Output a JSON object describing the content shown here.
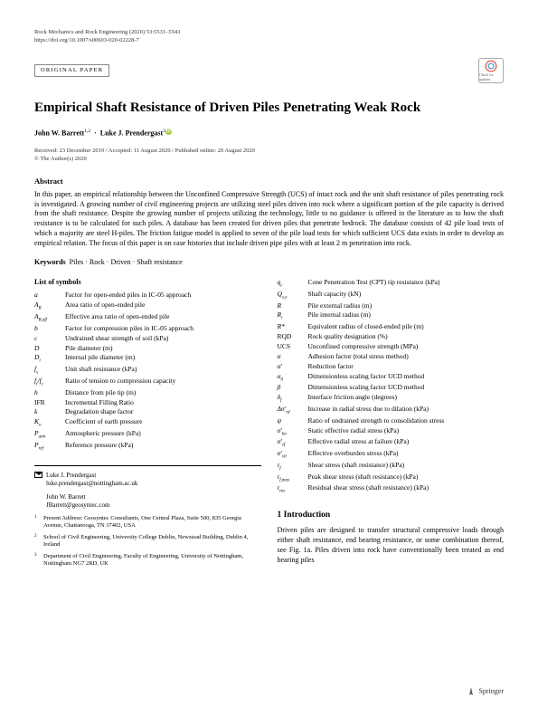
{
  "header": {
    "journal_line": "Rock Mechanics and Rock Engineering (2020) 53:5531–5543",
    "doi_line": "https://doi.org/10.1007/s00603-020-02228-7",
    "badge": "ORIGINAL PAPER",
    "crossmark_label": "Check for updates"
  },
  "title": "Empirical Shaft Resistance of Driven Piles Penetrating Weak Rock",
  "authors": {
    "a1_name": "John W. Barrett",
    "a1_sup": "1,2",
    "a2_name": "Luke J. Prendergast",
    "a2_sup": "3"
  },
  "dates": "Received: 23 December 2019 / Accepted: 11 August 2020 / Published online: 20 August 2020",
  "copyright": "© The Author(s) 2020",
  "abstract": {
    "head": "Abstract",
    "text": "In this paper, an empirical relationship between the Unconfined Compressive Strength (UCS) of intact rock and the unit shaft resistance of piles penetrating rock is investigated. A growing number of civil engineering projects are utilizing steel piles driven into rock where a significant portion of the pile capacity is derived from the shaft resistance. Despite the growing number of projects utilizing the technology, little to no guidance is offered in the literature as to how the shaft resistance is to be calculated for such piles. A database has been created for driven piles that penetrate bedrock. The database consists of 42 pile load tests of which a majority are steel H-piles. The friction fatigue model is applied to seven of the pile load tests for which sufficient UCS data exists in order to develop an empirical relation. The focus of this paper is on case histories that include driven pipe piles with at least 2 m penetration into rock."
  },
  "keywords": {
    "label": "Keywords",
    "text": "Piles · Rock · Driven · Shaft resistance"
  },
  "symbols_head": "List of symbols",
  "symL": [
    {
      "s": "a",
      "d": "Factor for open-ended piles in IC-05 approach"
    },
    {
      "s": "A_R",
      "d": "Area ratio of open-ended pile"
    },
    {
      "s": "A_{R,eff}",
      "d": "Effective area ratio of open-ended pile"
    },
    {
      "s": "b",
      "d": "Factor for compression piles in IC-05 approach"
    },
    {
      "s": "c",
      "d": "Undrained shear strength of soil (kPa)"
    },
    {
      "s": "D",
      "d": "Pile diameter (m)"
    },
    {
      "s": "D_i",
      "d": "Internal pile diameter (m)"
    },
    {
      "s": "f_s",
      "d": "Unit shaft resistance (kPa)"
    },
    {
      "s": "f_t/f_c",
      "d": "Ratio of tension to compression capacity"
    },
    {
      "s": "h",
      "d": "Distance from pile tip (m)"
    },
    {
      "s": "IFR",
      "d": "Incremental Filling Ratio",
      "upright": true
    },
    {
      "s": "k",
      "d": "Degradation shape factor"
    },
    {
      "s": "K_o",
      "d": "Coefficient of earth pressure"
    },
    {
      "s": "P_{atm}",
      "d": "Atmospheric pressure (kPa)"
    },
    {
      "s": "P_{ref}",
      "d": "Reference pressure (kPa)"
    }
  ],
  "symR": [
    {
      "s": "q_c",
      "d": "Cone Penetration Test (CPT) tip resistance (kPa)"
    },
    {
      "s": "Q_{s,x}",
      "d": "Shaft capacity (kN)"
    },
    {
      "s": "R",
      "d": "Pile external radius (m)"
    },
    {
      "s": "R_i",
      "d": "Pile internal radius (m)"
    },
    {
      "s": "R*",
      "d": "Equivalent radius of closed-ended pile (m)"
    },
    {
      "s": "RQD",
      "d": "Rock quality designation (%)",
      "upright": true
    },
    {
      "s": "UCS",
      "d": "Unconfined compressive strength (MPa)",
      "upright": true
    },
    {
      "s": "α",
      "d": "Adhesion factor (total stress method)"
    },
    {
      "s": "α′",
      "d": "Reduction factor"
    },
    {
      "s": "α_0",
      "d": "Dimensionless scaling factor UCD method"
    },
    {
      "s": "β",
      "d": "Dimensionless scaling factor UCD method"
    },
    {
      "s": "δ_f",
      "d": "Interface friction angle (degrees)"
    },
    {
      "s": "Δσ′_{rd}",
      "d": "Increase in radial stress due to dilation (kPa)"
    },
    {
      "s": "ψ",
      "d": "Ratio of undrained strength to consolidation stress"
    },
    {
      "s": "σ′_{ho}",
      "d": "Static effective radial stress (kPa)"
    },
    {
      "s": "σ′_{rf}",
      "d": "Effective radial stress at failure (kPa)"
    },
    {
      "s": "σ′_{v0}",
      "d": "Effective overburden stress (kPa)"
    },
    {
      "s": "τ_f",
      "d": "Shear stress (shaft resistance) (kPa)"
    },
    {
      "s": "τ_{f,max}",
      "d": "Peak shear stress (shaft resistance) (kPa)"
    },
    {
      "s": "τ_{res}",
      "d": "Residual shear stress (shaft resistance) (kPa)"
    }
  ],
  "corr": [
    {
      "name": "Luke J. Prendergast",
      "email": "luke.prendergast@nottingham.ac.uk"
    },
    {
      "name": "John W. Barrett",
      "email": "JBarrett@geosyntec.com"
    }
  ],
  "affils": [
    {
      "n": "1",
      "t": "Present Address: Geosyntec Consultants, One Central Plaza, Suite 500, 835 Georgia Avenue, Chattanooga, TN 37402, USA"
    },
    {
      "n": "2",
      "t": "School of Civil Engineering, University College Dublin, Newstead Building, Dublin 4, Ireland"
    },
    {
      "n": "3",
      "t": "Department of Civil Engineering, Faculty of Engineering, University of Nottingham, Nottingham NG7 2RD, UK"
    }
  ],
  "intro": {
    "head": "1 Introduction",
    "text": "Driven piles are designed to transfer structural compressive loads through either shaft resistance, end bearing resistance, or some combination thereof, see Fig. 1a. Piles driven into rock have conventionally been treated as end bearing piles"
  },
  "publisher": "Springer"
}
